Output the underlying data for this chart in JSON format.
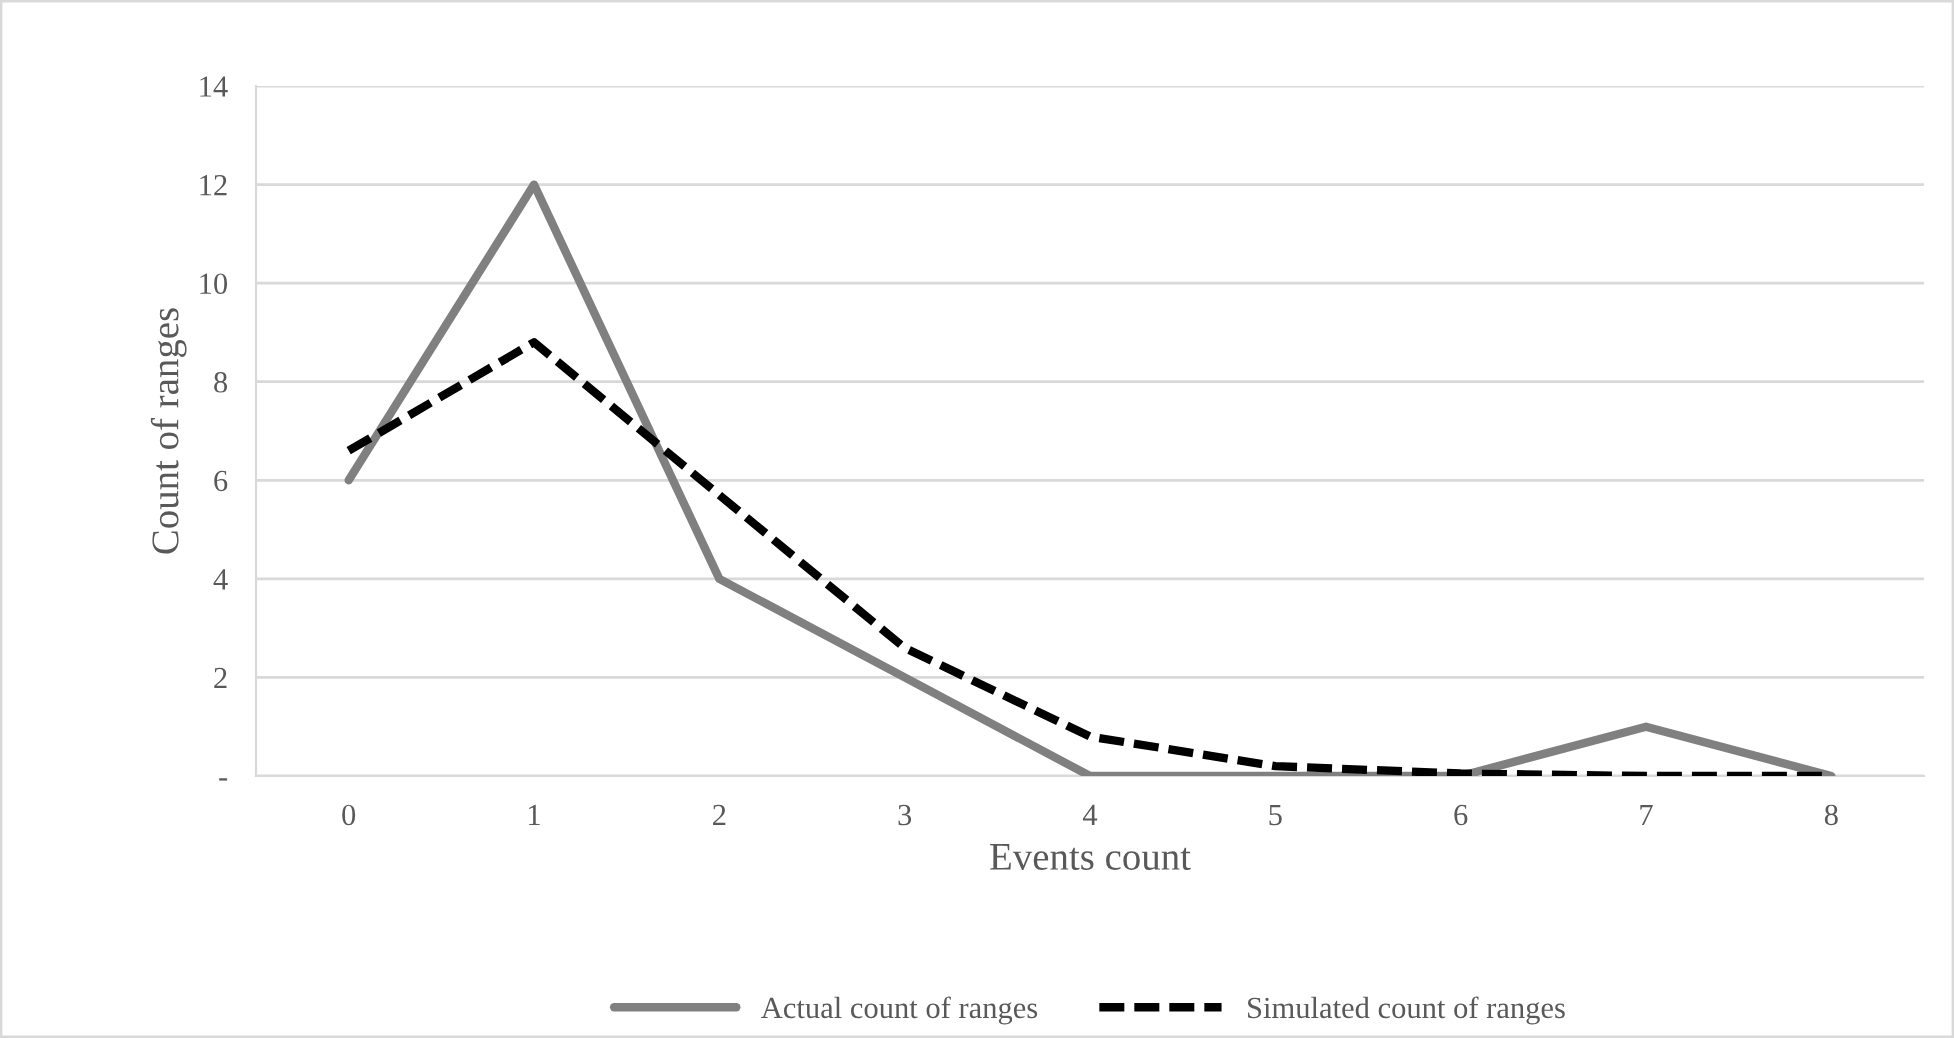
{
  "chart_data": {
    "type": "line",
    "xlabel": "Events count",
    "ylabel": "Count of ranges",
    "categories": [
      "0",
      "1",
      "2",
      "3",
      "4",
      "5",
      "6",
      "7",
      "8"
    ],
    "series": [
      {
        "name": "Actual count of ranges",
        "color": "#808080",
        "line_style": "solid",
        "values": [
          6,
          12,
          4,
          2,
          0,
          0,
          0,
          1,
          0
        ]
      },
      {
        "name": "Simulated count of ranges",
        "color": "#000000",
        "line_style": "dashed",
        "values": [
          6.6,
          8.8,
          5.7,
          2.6,
          0.8,
          0.2,
          0.05,
          0,
          0
        ]
      }
    ],
    "ylim": [
      0,
      14
    ],
    "yticks": [
      {
        "value": 0,
        "label": "-"
      },
      2,
      4,
      6,
      8,
      10,
      12,
      14
    ],
    "grid": "y",
    "legend": "bottom",
    "marker": "none"
  }
}
